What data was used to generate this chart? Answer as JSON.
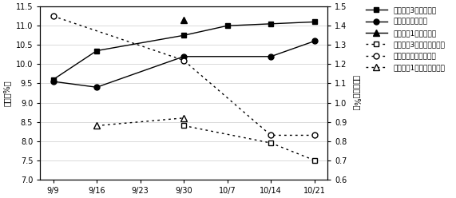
{
  "x_labels": [
    "9/9",
    "9/16",
    "9/23",
    "9/30",
    "10/7",
    "10/14",
    "10/21"
  ],
  "x_values": [
    0,
    1,
    2,
    3,
    4,
    5,
    6
  ],
  "series_sugar": {
    "mie_kinan3": {
      "label": "みえ紀南3号（糖度）",
      "values": [
        9.6,
        10.35,
        null,
        10.75,
        11.0,
        11.05,
        11.1
      ],
      "color": "#000000",
      "marker": "s",
      "linestyle": "-"
    },
    "ueno": {
      "label": "上野対照（糖度）",
      "values": [
        9.55,
        9.4,
        null,
        10.2,
        null,
        10.2,
        10.6
      ],
      "color": "#000000",
      "marker": "o",
      "linestyle": "-"
    },
    "mie_kinan1": {
      "label": "みえ紀南1号（糖度）",
      "values": [
        null,
        null,
        null,
        11.15,
        null,
        null,
        null
      ],
      "color": "#000000",
      "marker": "^",
      "linestyle": "-"
    }
  },
  "series_acid": {
    "mie_kinan3": {
      "label": "みえ紀南3号（クエン酸）",
      "values": [
        null,
        null,
        null,
        0.88,
        null,
        0.79,
        0.7
      ],
      "color": "#000000",
      "marker": "s",
      "linestyle": ":"
    },
    "ueno": {
      "label": "上野対照（クエン酸）",
      "values": [
        1.45,
        null,
        null,
        1.22,
        null,
        0.83,
        0.83
      ],
      "color": "#000000",
      "marker": "o",
      "linestyle": ":"
    },
    "mie_kinan1": {
      "label": "みえ紀南1号（クエン酸）",
      "values": [
        null,
        0.88,
        null,
        0.92,
        null,
        null,
        null
      ],
      "color": "#000000",
      "marker": "^",
      "linestyle": ":"
    }
  },
  "ylim_left": [
    7.0,
    11.5
  ],
  "ylim_right": [
    0.6,
    1.5
  ],
  "yticks_left": [
    7.0,
    7.5,
    8.0,
    8.5,
    9.0,
    9.5,
    10.0,
    10.5,
    11.0,
    11.5
  ],
  "yticks_right": [
    0.6,
    0.7,
    0.8,
    0.9,
    1.0,
    1.1,
    1.2,
    1.3,
    1.4,
    1.5
  ],
  "ylabel_left": "糖度（%）",
  "ylabel_right": "クエン酸（%）",
  "background_color": "#ffffff",
  "grid_color": "#cccccc"
}
